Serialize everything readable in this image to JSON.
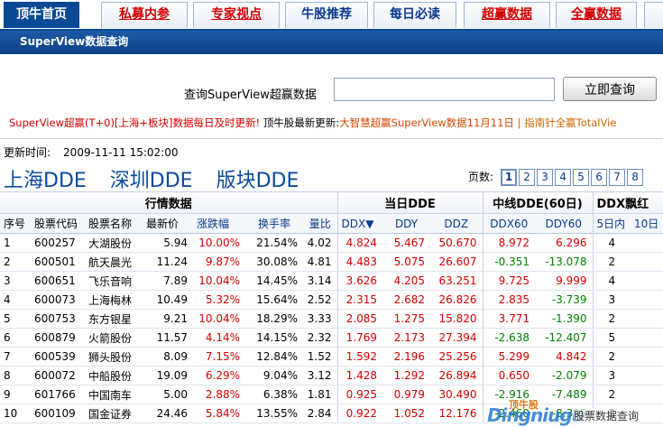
{
  "tabs": [
    {
      "label": "顶牛首页",
      "style": "active"
    },
    {
      "label": "私募内参",
      "style": "red u"
    },
    {
      "label": "专家视点",
      "style": "red u"
    },
    {
      "label": "牛股推荐",
      "style": "blue"
    },
    {
      "label": "每日必读",
      "style": "blue"
    },
    {
      "label": "超赢数据",
      "style": "red u"
    },
    {
      "label": "全赢数据",
      "style": "red u"
    }
  ],
  "titlebar": "SuperView数据查询",
  "search": {
    "label": "查询SuperView超赢数据",
    "value": "",
    "button": "立即查询"
  },
  "news": {
    "n1": "SuperView超赢(T+0)[上海+板块]数据每日及时更新!",
    "n2": "顶牛股最新更新:",
    "n3": "大智慧超赢SuperView数据11月11日",
    "n4": "| 指南针全赢TotalVie"
  },
  "update": {
    "label": "更新时间:",
    "value": "2009-11-11 15:02:00"
  },
  "dde_links": [
    "上海DDE",
    "深圳DDE",
    "版块DDE"
  ],
  "pager": {
    "label": "页数:",
    "pages": [
      "1",
      "2",
      "3",
      "4",
      "5",
      "6",
      "7",
      "8"
    ],
    "current": "1"
  },
  "table": {
    "groups": [
      "行情数据",
      "当日DDE",
      "中线DDE(60日)",
      "DDX飘红"
    ],
    "headers": [
      "序号",
      "股票代码",
      "股票名称",
      "最新价",
      "涨跌幅",
      "换手率",
      "量比",
      "DDX▼",
      "DDY",
      "DDZ",
      "DDX60",
      "DDY60",
      "5日内",
      "10日"
    ],
    "rows": [
      [
        "1",
        "600257",
        "大湖股份",
        "5.94",
        "10.00%",
        "21.54%",
        "4.02",
        "4.824",
        "5.467",
        "50.670",
        "8.972",
        "6.296",
        "4",
        ""
      ],
      [
        "2",
        "600501",
        "航天晨光",
        "11.24",
        "9.87%",
        "30.08%",
        "4.81",
        "4.483",
        "5.075",
        "26.607",
        "-0.351",
        "-13.078",
        "2",
        ""
      ],
      [
        "3",
        "600651",
        "飞乐音响",
        "7.89",
        "10.04%",
        "14.45%",
        "3.14",
        "3.626",
        "4.205",
        "63.251",
        "9.725",
        "9.999",
        "4",
        ""
      ],
      [
        "4",
        "600073",
        "上海梅林",
        "10.49",
        "5.32%",
        "15.64%",
        "2.52",
        "2.315",
        "2.682",
        "26.826",
        "2.835",
        "-3.739",
        "3",
        ""
      ],
      [
        "5",
        "600753",
        "东方银星",
        "9.21",
        "10.04%",
        "18.29%",
        "3.33",
        "2.085",
        "1.275",
        "15.820",
        "3.771",
        "-1.390",
        "2",
        ""
      ],
      [
        "6",
        "600879",
        "火箭股份",
        "11.57",
        "4.14%",
        "14.15%",
        "2.32",
        "1.769",
        "2.173",
        "27.394",
        "-2.638",
        "-12.407",
        "5",
        ""
      ],
      [
        "7",
        "600539",
        "狮头股份",
        "8.09",
        "7.15%",
        "12.84%",
        "1.52",
        "1.592",
        "2.196",
        "25.256",
        "5.299",
        "4.842",
        "2",
        ""
      ],
      [
        "8",
        "600072",
        "中船股份",
        "19.09",
        "6.29%",
        "9.04%",
        "3.12",
        "1.428",
        "1.292",
        "26.894",
        "0.650",
        "-2.079",
        "3",
        ""
      ],
      [
        "9",
        "601766",
        "中国南车",
        "5.00",
        "2.88%",
        "6.38%",
        "1.81",
        "0.925",
        "0.979",
        "30.490",
        "-2.916",
        "-7.489",
        "2",
        ""
      ],
      [
        "10",
        "600109",
        "国金证券",
        "24.46",
        "5.84%",
        "13.55%",
        "2.84",
        "0.922",
        "1.052",
        "12.176",
        "-2.460",
        "-8.395",
        "2",
        ""
      ]
    ]
  },
  "watermark": {
    "top": "顶牛股",
    "brand": "Dingniugu",
    "text": "股票数据查询"
  },
  "colors": {
    "accent": "#0a4a94",
    "up": "#d40000",
    "down": "#008000"
  }
}
